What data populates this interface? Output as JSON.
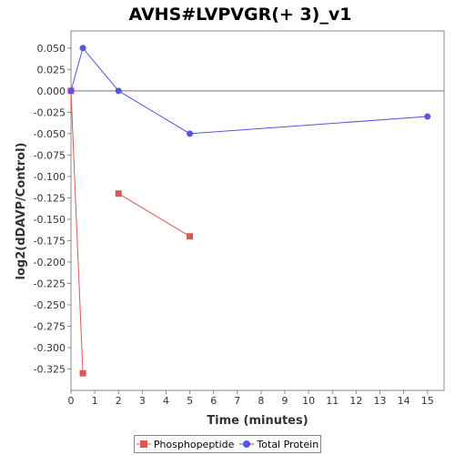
{
  "chart_data": {
    "type": "line",
    "title": "AVHS#LVPVGR(+ 3)_v1",
    "xlabel": "Time (minutes)",
    "ylabel": "log2(dDAVP/Control)",
    "xlim": [
      0,
      15.7
    ],
    "ylim": [
      -0.35,
      0.07
    ],
    "xticks": [
      0,
      1,
      2,
      3,
      4,
      5,
      6,
      7,
      8,
      9,
      10,
      11,
      12,
      13,
      14,
      15
    ],
    "yticks": [
      0.05,
      0.025,
      0.0,
      -0.025,
      -0.05,
      -0.075,
      -0.1,
      -0.125,
      -0.15,
      -0.175,
      -0.2,
      -0.225,
      -0.25,
      -0.275,
      -0.3,
      -0.325
    ],
    "ytick_labels": [
      "0.050",
      "0.025",
      "0.000",
      "-0.025",
      "-0.050",
      "-0.075",
      "-0.100",
      "-0.125",
      "-0.150",
      "-0.175",
      "-0.200",
      "-0.225",
      "-0.250",
      "-0.275",
      "-0.300",
      "-0.325"
    ],
    "zero_line": true,
    "grid": false,
    "legend_position": "bottom-center",
    "series": [
      {
        "name": "Phosphopeptide",
        "color": "#e05555",
        "marker": "square",
        "segments": [
          [
            {
              "x": 0,
              "y": 0.0
            },
            {
              "x": 0.5,
              "y": -0.33
            }
          ],
          [
            {
              "x": 2,
              "y": -0.12
            },
            {
              "x": 5,
              "y": -0.17
            }
          ]
        ]
      },
      {
        "name": "Total Protein",
        "color": "#5555e0",
        "marker": "circle",
        "segments": [
          [
            {
              "x": 0,
              "y": 0.0
            },
            {
              "x": 0.5,
              "y": 0.05
            },
            {
              "x": 2,
              "y": 0.0
            },
            {
              "x": 5,
              "y": -0.05
            },
            {
              "x": 15,
              "y": -0.03
            }
          ]
        ]
      }
    ]
  }
}
